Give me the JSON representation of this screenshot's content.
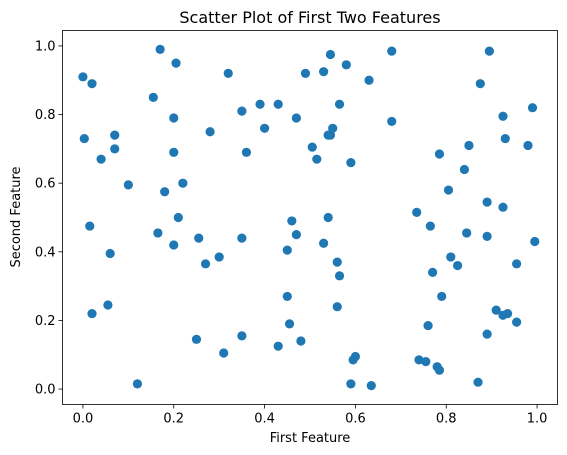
{
  "chart_data": {
    "type": "scatter",
    "title": "Scatter Plot of First Two Features",
    "xlabel": "First Feature",
    "ylabel": "Second Feature",
    "xlim": [
      -0.045,
      1.045
    ],
    "ylim": [
      -0.045,
      1.045
    ],
    "xticks": [
      "0.0",
      "0.2",
      "0.4",
      "0.6",
      "0.8",
      "1.0"
    ],
    "yticks": [
      "0.0",
      "0.2",
      "0.4",
      "0.6",
      "0.8",
      "1.0"
    ],
    "xtick_values": [
      0.0,
      0.2,
      0.4,
      0.6,
      0.8,
      1.0
    ],
    "ytick_values": [
      0.0,
      0.2,
      0.4,
      0.6,
      0.8,
      1.0
    ],
    "grid": false,
    "marker_color": "#1f77b4",
    "x": [
      0.0,
      0.02,
      0.17,
      0.205,
      0.32,
      0.003,
      0.155,
      0.07,
      0.2,
      0.07,
      0.04,
      0.2,
      0.1,
      0.22,
      0.18,
      0.28,
      0.35,
      0.39,
      0.43,
      0.4,
      0.36,
      0.47,
      0.49,
      0.53,
      0.545,
      0.58,
      0.63,
      0.68,
      0.545,
      0.565,
      0.55,
      0.54,
      0.505,
      0.515,
      0.59,
      0.68,
      0.875,
      0.895,
      0.925,
      0.99,
      0.93,
      0.85,
      0.98,
      0.785,
      0.84,
      0.805,
      0.89,
      0.925,
      0.735,
      0.765,
      0.89,
      0.995,
      0.845,
      0.81,
      0.825,
      0.77,
      0.955,
      0.79,
      0.91,
      0.935,
      0.925,
      0.955,
      0.76,
      0.89,
      0.74,
      0.755,
      0.78,
      0.785,
      0.87,
      0.015,
      0.06,
      0.165,
      0.21,
      0.2,
      0.255,
      0.35,
      0.27,
      0.3,
      0.46,
      0.47,
      0.45,
      0.53,
      0.54,
      0.56,
      0.565,
      0.56,
      0.45,
      0.455,
      0.35,
      0.25,
      0.31,
      0.43,
      0.48,
      0.595,
      0.6,
      0.59,
      0.635,
      0.055,
      0.02,
      0.12
    ],
    "y": [
      0.91,
      0.89,
      0.99,
      0.95,
      0.92,
      0.73,
      0.85,
      0.74,
      0.79,
      0.7,
      0.67,
      0.69,
      0.595,
      0.6,
      0.575,
      0.75,
      0.81,
      0.83,
      0.83,
      0.76,
      0.69,
      0.79,
      0.92,
      0.925,
      0.975,
      0.945,
      0.9,
      0.985,
      0.74,
      0.83,
      0.76,
      0.74,
      0.705,
      0.67,
      0.66,
      0.78,
      0.89,
      0.985,
      0.795,
      0.82,
      0.73,
      0.71,
      0.71,
      0.685,
      0.64,
      0.58,
      0.545,
      0.53,
      0.515,
      0.475,
      0.445,
      0.43,
      0.455,
      0.385,
      0.36,
      0.34,
      0.365,
      0.27,
      0.23,
      0.22,
      0.215,
      0.195,
      0.185,
      0.16,
      0.085,
      0.08,
      0.065,
      0.055,
      0.02,
      0.475,
      0.395,
      0.455,
      0.5,
      0.42,
      0.44,
      0.44,
      0.365,
      0.385,
      0.49,
      0.45,
      0.405,
      0.425,
      0.5,
      0.37,
      0.33,
      0.24,
      0.27,
      0.19,
      0.155,
      0.145,
      0.105,
      0.125,
      0.14,
      0.085,
      0.095,
      0.015,
      0.01,
      0.245,
      0.22,
      0.015
    ]
  }
}
